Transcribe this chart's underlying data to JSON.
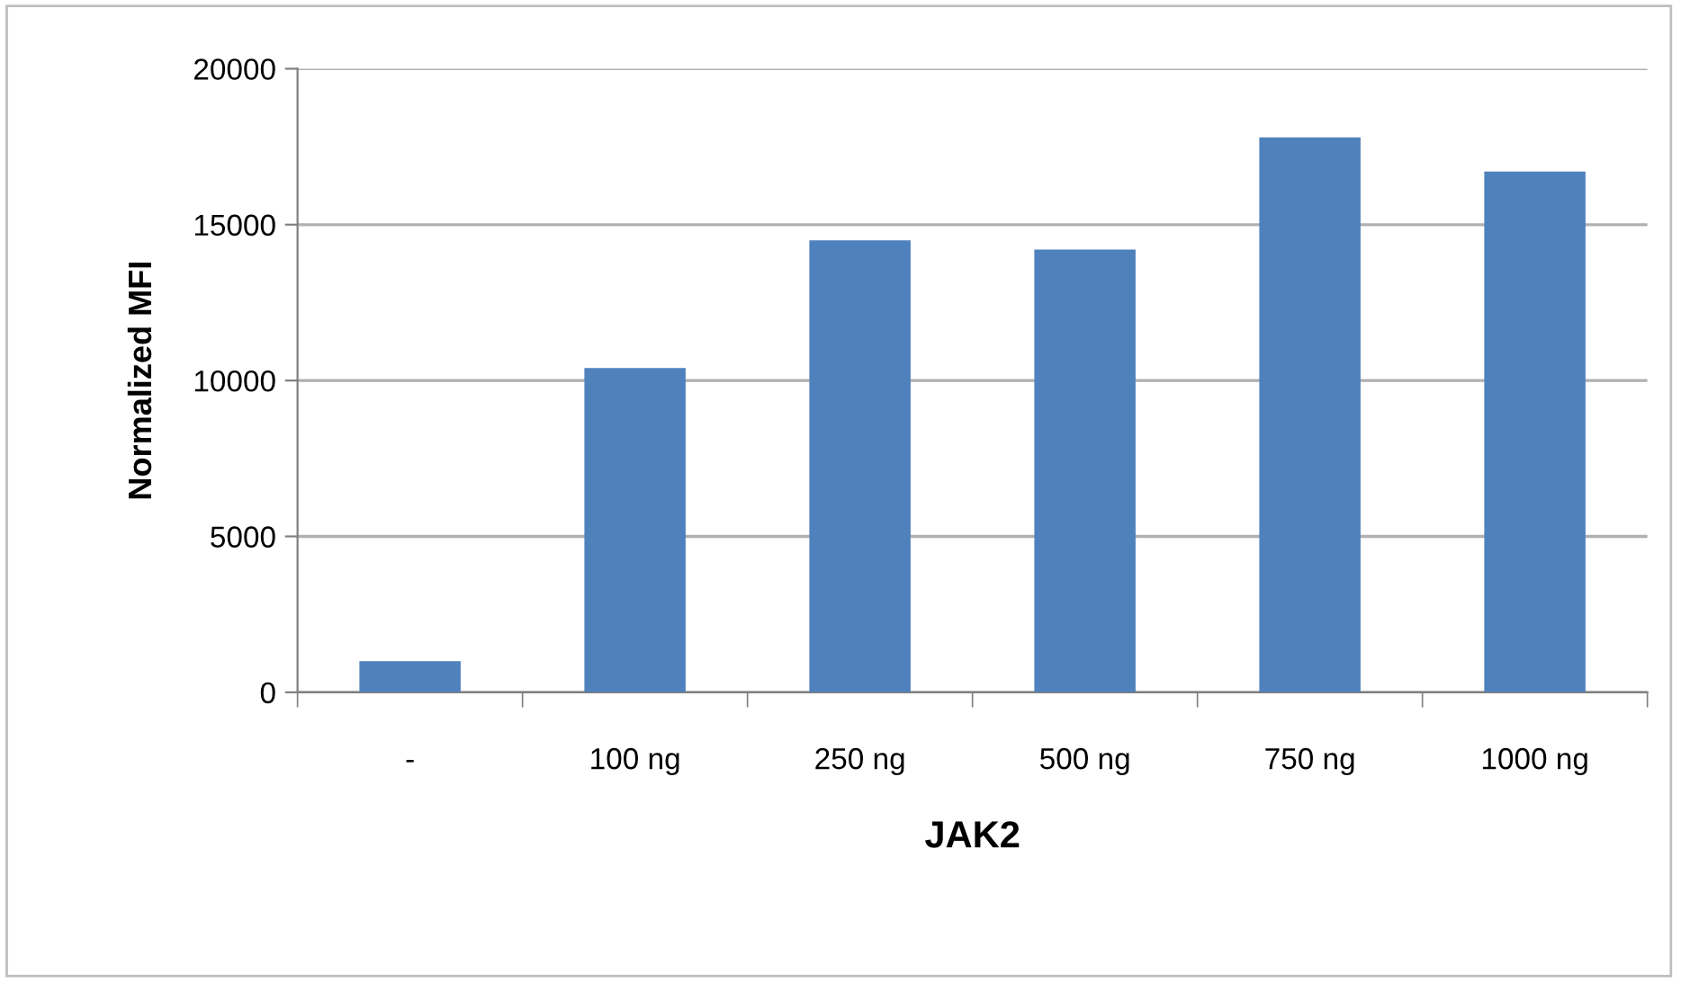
{
  "chart_data": {
    "type": "bar",
    "xlabel": "JAK2",
    "ylabel": "Normalized MFI",
    "categories": [
      "-",
      "100 ng",
      "250 ng",
      "500 ng",
      "750 ng",
      "1000 ng"
    ],
    "values": [
      1000,
      10400,
      14500,
      14200,
      17800,
      16700
    ],
    "color": "#4f81bd",
    "ylim": [
      0,
      20000
    ],
    "yticks": [
      0,
      5000,
      10000,
      15000,
      20000
    ],
    "grid": "y",
    "legend": false
  }
}
